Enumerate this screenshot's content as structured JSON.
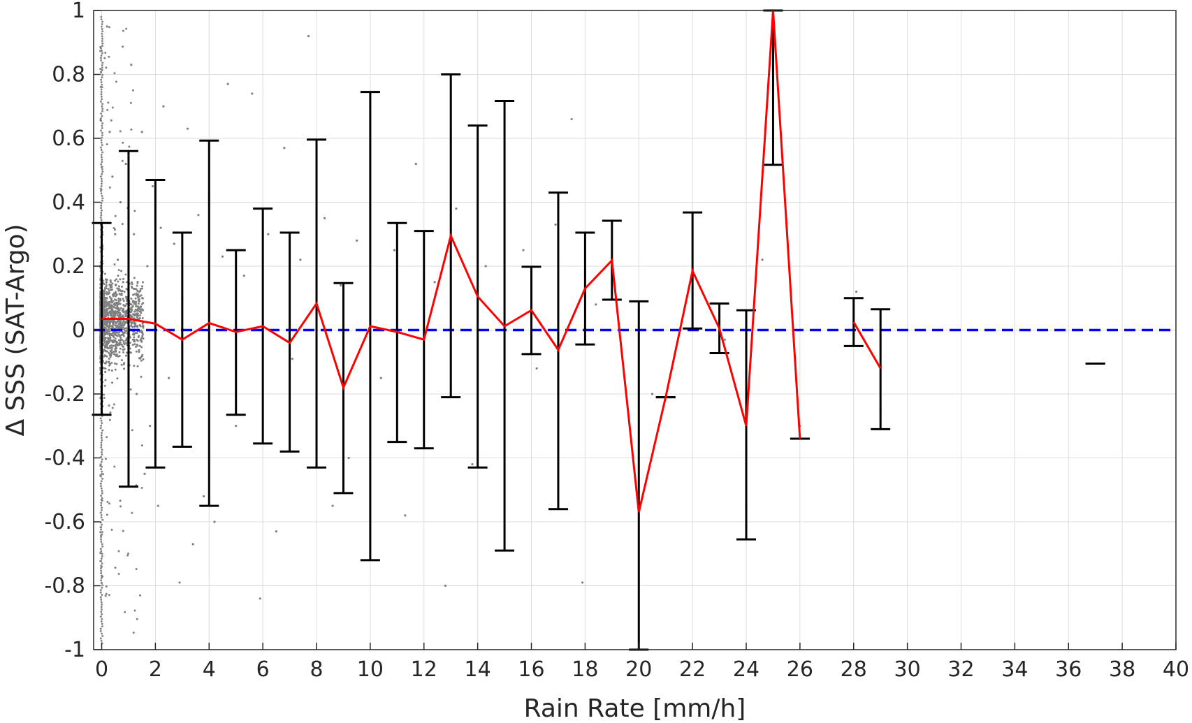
{
  "chart_data": {
    "type": "scatter",
    "xlabel": "Rain Rate [mm/h]",
    "ylabel": "Δ SSS (SAT-Argo)",
    "xlim": [
      -0.3,
      40
    ],
    "ylim": [
      -1,
      1
    ],
    "xticks": [
      "0",
      "2",
      "4",
      "6",
      "8",
      "10",
      "12",
      "14",
      "16",
      "18",
      "20",
      "22",
      "24",
      "26",
      "28",
      "30",
      "32",
      "34",
      "36",
      "38",
      "40"
    ],
    "yticks": [
      "-1",
      "-0.8",
      "-0.6",
      "-0.4",
      "-0.2",
      "0",
      "0.2",
      "0.4",
      "0.6",
      "0.8",
      "1"
    ],
    "grid": true,
    "series": [
      {
        "style": "scatter",
        "color": "#808080",
        "points": [
          [
            0.2,
            0.95
          ],
          [
            0.3,
            0.62
          ],
          [
            0.4,
            0.48
          ],
          [
            0.5,
            0.3
          ],
          [
            0.6,
            0.22
          ],
          [
            0.7,
            0.4
          ],
          [
            0.8,
            0.15
          ],
          [
            0.9,
            0.52
          ],
          [
            1.1,
            0.83
          ],
          [
            1.2,
            0.3
          ],
          [
            1.3,
            -0.2
          ],
          [
            1.4,
            0.12
          ],
          [
            1.5,
            0.62
          ],
          [
            1.6,
            -0.45
          ],
          [
            1.7,
            0.2
          ],
          [
            1.8,
            -0.3
          ],
          [
            1.9,
            0.45
          ],
          [
            2.1,
            -0.55
          ],
          [
            2.2,
            0.32
          ],
          [
            2.3,
            0.7
          ],
          [
            2.5,
            -0.15
          ],
          [
            2.7,
            0.27
          ],
          [
            2.9,
            -0.79
          ],
          [
            3.0,
            0.1
          ],
          [
            3.2,
            0.63
          ],
          [
            3.4,
            -0.67
          ],
          [
            3.6,
            0.36
          ],
          [
            3.8,
            -0.52
          ],
          [
            4.0,
            0.42
          ],
          [
            4.2,
            -0.6
          ],
          [
            4.5,
            0.23
          ],
          [
            4.7,
            0.77
          ],
          [
            5.0,
            -0.3
          ],
          [
            5.3,
            0.17
          ],
          [
            5.6,
            0.74
          ],
          [
            5.9,
            -0.84
          ],
          [
            6.2,
            0.3
          ],
          [
            6.5,
            -0.63
          ],
          [
            6.8,
            0.57
          ],
          [
            7.1,
            -0.09
          ],
          [
            7.4,
            0.22
          ],
          [
            7.7,
            0.92
          ],
          [
            8.0,
            -0.25
          ],
          [
            8.3,
            0.35
          ],
          [
            8.6,
            -0.55
          ],
          [
            8.9,
            0.14
          ],
          [
            9.2,
            -0.4
          ],
          [
            9.5,
            0.28
          ],
          [
            10.0,
            0.7
          ],
          [
            10.4,
            -0.15
          ],
          [
            10.9,
            0.25
          ],
          [
            11.3,
            -0.58
          ],
          [
            11.7,
            0.52
          ],
          [
            12.0,
            -0.37
          ],
          [
            12.4,
            0.15
          ],
          [
            12.8,
            -0.8
          ],
          [
            13.2,
            0.38
          ],
          [
            13.8,
            -0.42
          ],
          [
            14.3,
            0.2
          ],
          [
            15.0,
            -0.1
          ],
          [
            15.7,
            0.25
          ],
          [
            16.2,
            -0.12
          ],
          [
            16.9,
            0.33
          ],
          [
            17.5,
            0.66
          ],
          [
            17.9,
            -0.79
          ],
          [
            18.4,
            0.08
          ],
          [
            19.0,
            0.12
          ],
          [
            20.5,
            -0.2
          ],
          [
            23.2,
            -0.03
          ],
          [
            24.0,
            -0.55
          ],
          [
            24.6,
            0.22
          ],
          [
            26.0,
            -0.3
          ],
          [
            28.1,
            0.12
          ],
          [
            29.0,
            -0.25
          ]
        ],
        "dense_column_note": ""
      },
      {
        "style": "errorbar",
        "color": "#000000",
        "x": [
          0,
          1,
          2,
          3,
          4,
          5,
          6,
          7,
          8,
          9,
          10,
          11,
          12,
          13,
          14,
          15,
          16,
          17,
          18,
          19,
          20,
          21,
          22,
          23,
          24,
          25,
          26,
          28,
          29,
          37
        ],
        "y": [
          0.035,
          0.035,
          0.02,
          -0.03,
          0.022,
          -0.006,
          0.012,
          -0.04,
          0.083,
          -0.18,
          0.012,
          -0.006,
          -0.03,
          0.295,
          0.105,
          0.012,
          0.062,
          -0.062,
          0.13,
          0.218,
          -0.57,
          -0.21,
          0.185,
          0.005,
          -0.3,
          1.0,
          -0.34,
          0.025,
          -0.12,
          -0.105
        ],
        "lower": [
          -0.265,
          -0.49,
          -0.43,
          -0.365,
          -0.55,
          -0.265,
          -0.355,
          -0.38,
          -0.43,
          -0.51,
          -0.72,
          -0.35,
          -0.37,
          -0.21,
          -0.43,
          -0.69,
          -0.075,
          -0.56,
          -0.045,
          0.095,
          -1.0,
          -0.21,
          0.005,
          -0.072,
          -0.655,
          0.517,
          -0.34,
          -0.05,
          -0.31,
          -0.105
        ],
        "upper": [
          0.335,
          0.56,
          0.47,
          0.305,
          0.593,
          0.25,
          0.38,
          0.305,
          0.596,
          0.147,
          0.745,
          0.335,
          0.31,
          0.8,
          0.64,
          0.717,
          0.198,
          0.43,
          0.305,
          0.342,
          0.09,
          -0.21,
          0.368,
          0.083,
          0.062,
          1.0,
          -0.34,
          0.1,
          0.065,
          -0.105
        ]
      },
      {
        "style": "line",
        "color": "#ff0000",
        "segments": [
          {
            "x": [
              0,
              1,
              2,
              3,
              4,
              5,
              6,
              7,
              8,
              9,
              10,
              11,
              12,
              13,
              14,
              15,
              16,
              17,
              18,
              19,
              20,
              21,
              22,
              23,
              24,
              25,
              26
            ],
            "y": [
              0.035,
              0.035,
              0.02,
              -0.03,
              0.022,
              -0.006,
              0.012,
              -0.04,
              0.083,
              -0.18,
              0.012,
              -0.006,
              -0.03,
              0.295,
              0.105,
              0.012,
              0.062,
              -0.062,
              0.13,
              0.218,
              -0.57,
              -0.21,
              0.185,
              0.005,
              -0.3,
              1.0,
              -0.34
            ]
          },
          {
            "x": [
              28,
              29
            ],
            "y": [
              0.025,
              -0.12
            ]
          }
        ]
      },
      {
        "style": "reference-line",
        "color": "#0000ff",
        "y": 0
      }
    ]
  }
}
